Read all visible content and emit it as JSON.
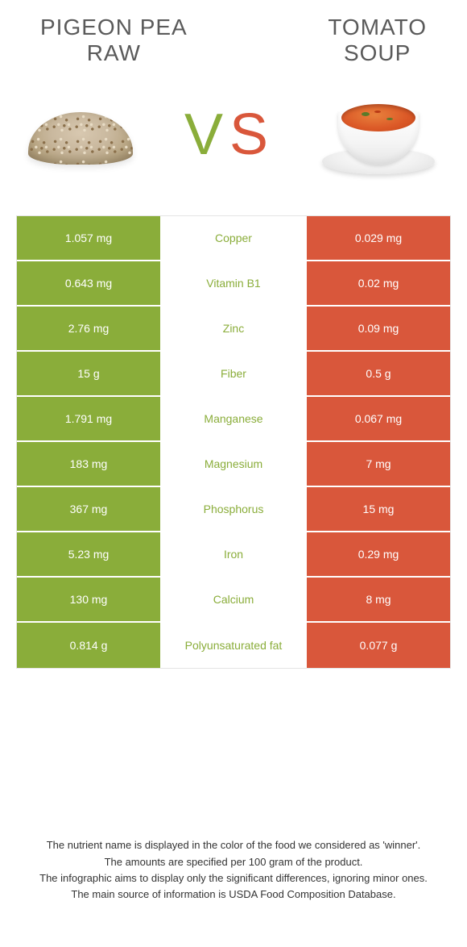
{
  "left_food": {
    "title": "PIGEON PEA\nRAW",
    "color": "#8aad3a"
  },
  "right_food": {
    "title": "TOMATO\nSOUP",
    "color": "#d9573b"
  },
  "vs": {
    "v": "V",
    "s": "S"
  },
  "colors": {
    "left_bg": "#8aad3a",
    "right_bg": "#d9573b",
    "mid_label_winner_left": "#8aad3a",
    "mid_label_winner_right": "#d9573b",
    "cell_text": "#ffffff",
    "border": "#e5e5e5"
  },
  "rows": [
    {
      "label": "Copper",
      "left": "1.057 mg",
      "right": "0.029 mg",
      "winner": "left"
    },
    {
      "label": "Vitamin B1",
      "left": "0.643 mg",
      "right": "0.02 mg",
      "winner": "left"
    },
    {
      "label": "Zinc",
      "left": "2.76 mg",
      "right": "0.09 mg",
      "winner": "left"
    },
    {
      "label": "Fiber",
      "left": "15 g",
      "right": "0.5 g",
      "winner": "left"
    },
    {
      "label": "Manganese",
      "left": "1.791 mg",
      "right": "0.067 mg",
      "winner": "left"
    },
    {
      "label": "Magnesium",
      "left": "183 mg",
      "right": "7 mg",
      "winner": "left"
    },
    {
      "label": "Phosphorus",
      "left": "367 mg",
      "right": "15 mg",
      "winner": "left"
    },
    {
      "label": "Iron",
      "left": "5.23 mg",
      "right": "0.29 mg",
      "winner": "left"
    },
    {
      "label": "Calcium",
      "left": "130 mg",
      "right": "8 mg",
      "winner": "left"
    },
    {
      "label": "Polyunsaturated fat",
      "left": "0.814 g",
      "right": "0.077 g",
      "winner": "left"
    }
  ],
  "footnotes": {
    "l1": "The nutrient name is displayed in the color of the food we considered as 'winner'.",
    "l2": "The amounts are specified per 100 gram of the product.",
    "l3": "The infographic aims to display only the significant differences, ignoring minor ones.",
    "l4": "The main source of information is USDA Food Composition Database."
  }
}
